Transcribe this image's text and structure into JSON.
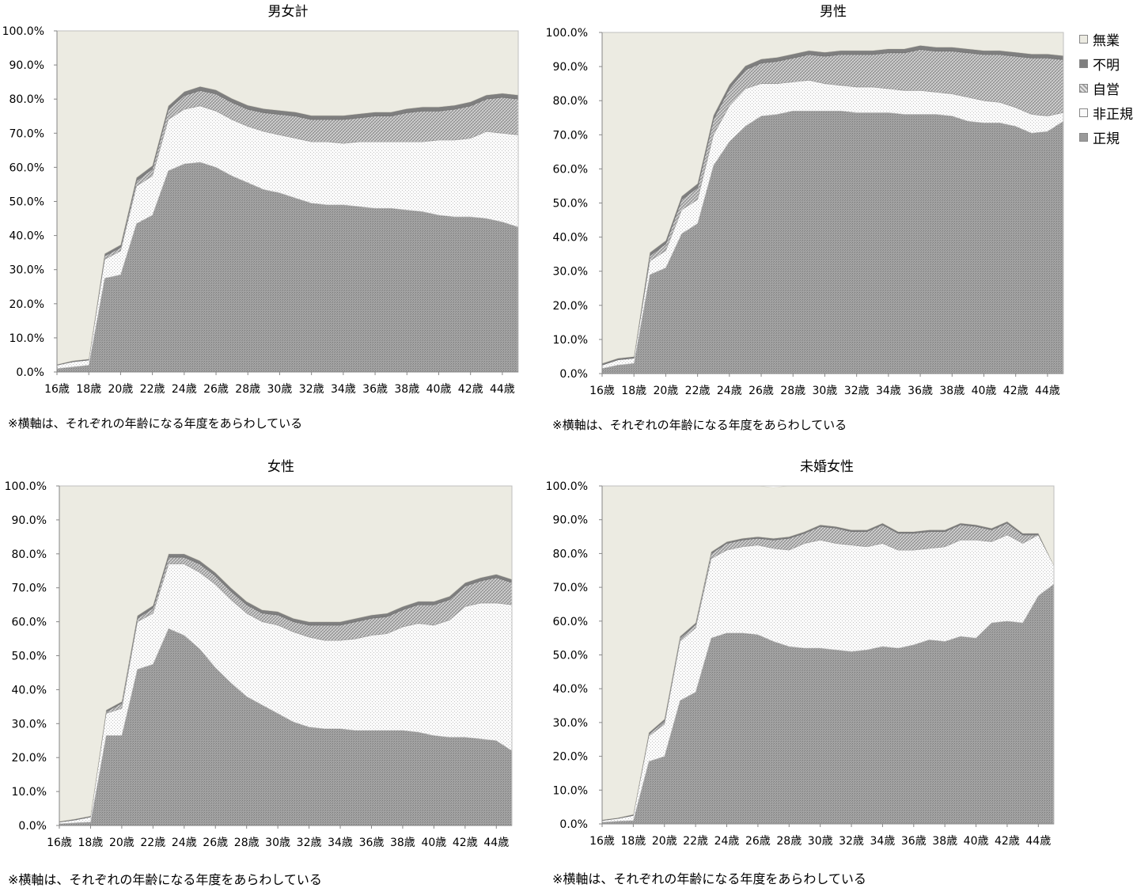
{
  "note": "※横軸は、それぞれの年齢になる年度をあらわしている",
  "legend": [
    {
      "key": "unemployed",
      "label": "無業"
    },
    {
      "key": "unknown",
      "label": "不明"
    },
    {
      "key": "self",
      "label": "自営"
    },
    {
      "key": "nonregular",
      "label": "非正規"
    },
    {
      "key": "regular",
      "label": "正規"
    }
  ],
  "colors": {
    "unemployed": "#ecebe2",
    "unknown": "#7f7f7f",
    "self": "#bfbfbf",
    "nonregular": "#f2f2f2",
    "regular": "#999999",
    "axis": "#868686",
    "border": "#bfbfbf"
  },
  "chart_data": [
    {
      "type": "area",
      "title": "男女計",
      "stacked": true,
      "x": [
        "16歳",
        "17歳",
        "18歳",
        "19歳",
        "20歳",
        "21歳",
        "22歳",
        "23歳",
        "24歳",
        "25歳",
        "26歳",
        "27歳",
        "28歳",
        "29歳",
        "30歳",
        "31歳",
        "32歳",
        "33歳",
        "34歳",
        "35歳",
        "36歳",
        "37歳",
        "38歳",
        "39歳",
        "40歳",
        "41歳",
        "42歳",
        "43歳",
        "44歳",
        "45歳"
      ],
      "tick_labels": [
        "16歳",
        "18歳",
        "20歳",
        "22歳",
        "24歳",
        "26歳",
        "28歳",
        "30歳",
        "32歳",
        "34歳",
        "36歳",
        "38歳",
        "40歳",
        "42歳",
        "44歳"
      ],
      "ylim": [
        0,
        100
      ],
      "yticks": [
        "0.0%",
        "10.0%",
        "20.0%",
        "30.0%",
        "40.0%",
        "50.0%",
        "60.0%",
        "70.0%",
        "80.0%",
        "90.0%",
        "100.0%"
      ],
      "series": [
        {
          "name": "正規",
          "values": [
            1,
            1.5,
            2,
            27.5,
            28.5,
            43.5,
            46,
            59,
            61,
            61.5,
            60,
            57.5,
            55.5,
            53.5,
            52.5,
            51,
            49.5,
            49,
            49,
            48.5,
            48,
            48,
            47.5,
            47,
            46,
            45.5,
            45.5,
            45,
            44,
            42.5
          ]
        },
        {
          "name": "非正規",
          "values": [
            1,
            1.5,
            1.5,
            5.5,
            7,
            11,
            11.5,
            15,
            16,
            16.5,
            16.5,
            16.5,
            16.5,
            17,
            17,
            17.5,
            18,
            18.5,
            18,
            19,
            19.5,
            19.5,
            20,
            20.5,
            22,
            22.5,
            23,
            25.5,
            26,
            27
          ]
        },
        {
          "name": "自営",
          "values": [
            0,
            0,
            0,
            1,
            1,
            1.5,
            2,
            3,
            4,
            4.5,
            5,
            5,
            5,
            5.5,
            6,
            6.5,
            6.5,
            6.5,
            7,
            7,
            7.5,
            7.5,
            8.5,
            9,
            8.5,
            9,
            9.5,
            9.5,
            10.5,
            10.5
          ]
        },
        {
          "name": "不明",
          "values": [
            0.2,
            0.3,
            0.3,
            0.7,
            0.8,
            1,
            1,
            1,
            1.2,
            1.2,
            1.2,
            1.2,
            1.2,
            1.2,
            1.2,
            1.2,
            1.2,
            1.2,
            1.2,
            1.2,
            1.2,
            1.2,
            1.2,
            1.2,
            1.2,
            1.2,
            1.2,
            1.2,
            1.2,
            1.2
          ]
        },
        {
          "name": "無業",
          "values": [
            97.8,
            96.7,
            96.2,
            65.3,
            62.7,
            43,
            39.5,
            22,
            17.8,
            16.3,
            17.3,
            20.3,
            21.8,
            22.8,
            23.3,
            23.8,
            24.8,
            24.8,
            24.8,
            24.3,
            23.8,
            23.8,
            22.8,
            22.3,
            22.3,
            21.8,
            20.8,
            18.8,
            18.3,
            18.8
          ]
        }
      ]
    },
    {
      "type": "area",
      "title": "男性",
      "stacked": true,
      "x": [
        "16歳",
        "17歳",
        "18歳",
        "19歳",
        "20歳",
        "21歳",
        "22歳",
        "23歳",
        "24歳",
        "25歳",
        "26歳",
        "27歳",
        "28歳",
        "29歳",
        "30歳",
        "31歳",
        "32歳",
        "33歳",
        "34歳",
        "35歳",
        "36歳",
        "37歳",
        "38歳",
        "39歳",
        "40歳",
        "41歳",
        "42歳",
        "43歳",
        "44歳",
        "45歳"
      ],
      "tick_labels": [
        "16歳",
        "18歳",
        "20歳",
        "22歳",
        "24歳",
        "26歳",
        "28歳",
        "30歳",
        "32歳",
        "34歳",
        "36歳",
        "38歳",
        "40歳",
        "42歳",
        "44歳"
      ],
      "ylim": [
        0,
        100
      ],
      "yticks": [
        "0.0%",
        "10.0%",
        "20.0%",
        "30.0%",
        "40.0%",
        "50.0%",
        "60.0%",
        "70.0%",
        "80.0%",
        "90.0%",
        "100.0%"
      ],
      "series": [
        {
          "name": "正規",
          "values": [
            1.5,
            2.5,
            3,
            29,
            31,
            41,
            44,
            61,
            68,
            72.5,
            75.5,
            76,
            77,
            77,
            77,
            77,
            76.5,
            76.5,
            76.5,
            76,
            76,
            76,
            75.5,
            74,
            73.5,
            73.5,
            72.5,
            70.5,
            71,
            74
          ]
        },
        {
          "name": "非正規",
          "values": [
            1,
            1.5,
            1.5,
            4,
            5,
            7,
            7,
            9,
            10.5,
            11,
            9.5,
            9,
            8.5,
            9,
            8,
            7.5,
            7.5,
            7.5,
            7,
            7,
            7,
            6.5,
            6.5,
            7,
            6.5,
            6,
            5.5,
            5.5,
            4.5,
            2.5
          ]
        },
        {
          "name": "自営",
          "values": [
            0,
            0,
            0,
            1.5,
            2,
            3,
            3.5,
            4.5,
            5,
            5.5,
            6,
            6.5,
            7,
            7.5,
            8,
            9,
            9.5,
            9.5,
            10.5,
            11,
            12,
            12,
            12.5,
            13,
            13.5,
            14,
            15,
            16.5,
            17,
            15.5
          ]
        },
        {
          "name": "不明",
          "values": [
            0.5,
            0.5,
            0.5,
            1,
            1,
            1,
            1.2,
            1.2,
            1.2,
            1.2,
            1.2,
            1.2,
            1.2,
            1.2,
            1.2,
            1.2,
            1.2,
            1.2,
            1.2,
            1.2,
            1.2,
            1.2,
            1.2,
            1.2,
            1.2,
            1.2,
            1.2,
            1.2,
            1.2,
            1.2
          ]
        },
        {
          "name": "無業",
          "values": [
            97,
            95.5,
            95,
            64.5,
            61,
            48,
            44.3,
            24.3,
            15.3,
            9.8,
            7.8,
            7.3,
            6.3,
            5.3,
            5.8,
            5.3,
            5.3,
            5.3,
            4.8,
            4.8,
            3.8,
            4.3,
            4.3,
            4.8,
            5.3,
            5.3,
            5.8,
            6.3,
            6.3,
            6.8
          ]
        }
      ]
    },
    {
      "type": "area",
      "title": "女性",
      "stacked": true,
      "x": [
        "16歳",
        "17歳",
        "18歳",
        "19歳",
        "20歳",
        "21歳",
        "22歳",
        "23歳",
        "24歳",
        "25歳",
        "26歳",
        "27歳",
        "28歳",
        "29歳",
        "30歳",
        "31歳",
        "32歳",
        "33歳",
        "34歳",
        "35歳",
        "36歳",
        "37歳",
        "38歳",
        "39歳",
        "40歳",
        "41歳",
        "42歳",
        "43歳",
        "44歳",
        "45歳"
      ],
      "tick_labels": [
        "16歳",
        "18歳",
        "20歳",
        "22歳",
        "24歳",
        "26歳",
        "28歳",
        "30歳",
        "32歳",
        "34歳",
        "36歳",
        "38歳",
        "40歳",
        "42歳",
        "44歳"
      ],
      "ylim": [
        0,
        100
      ],
      "yticks": [
        "0.0%",
        "10.0%",
        "20.0%",
        "30.0%",
        "40.0%",
        "50.0%",
        "60.0%",
        "70.0%",
        "80.0%",
        "90.0%",
        "100.0%"
      ],
      "series": [
        {
          "name": "正規",
          "values": [
            0.5,
            0.8,
            1,
            26.5,
            26.5,
            46,
            47.5,
            58,
            56,
            52,
            46.5,
            42,
            38,
            35.5,
            33,
            30.5,
            29,
            28.5,
            28.5,
            28,
            28,
            28,
            28,
            27.5,
            26.5,
            26,
            26,
            25.5,
            25,
            22
          ]
        },
        {
          "name": "非正規",
          "values": [
            0.5,
            0.8,
            1.5,
            6.5,
            8,
            14,
            15,
            19,
            21,
            22.5,
            24.5,
            24.5,
            24.5,
            24.5,
            26,
            26.5,
            26.5,
            26,
            26,
            27,
            28,
            28.5,
            30.5,
            32,
            32.5,
            34.5,
            38.5,
            40,
            40.5,
            43
          ]
        },
        {
          "name": "自営",
          "values": [
            0,
            0,
            0,
            0.5,
            1.5,
            1,
            1.5,
            2,
            2,
            2.5,
            2.5,
            2.5,
            2.5,
            2.5,
            3,
            3,
            3.5,
            4.5,
            4.5,
            5,
            5,
            5,
            5,
            5.5,
            6,
            6,
            6,
            6.5,
            7.5,
            6.5
          ]
        },
        {
          "name": "不明",
          "values": [
            0.2,
            0.3,
            0.3,
            0.5,
            0.5,
            0.8,
            0.8,
            1,
            1,
            1,
            1,
            1,
            1,
            1,
            1,
            1,
            1,
            1,
            1,
            1,
            1,
            1,
            1,
            1,
            1,
            1,
            1,
            1,
            1,
            1
          ]
        },
        {
          "name": "無業",
          "values": [
            98.8,
            98.1,
            97.2,
            66,
            63.5,
            38.2,
            35.2,
            20,
            20,
            22,
            25.5,
            30,
            34,
            36.5,
            37,
            39,
            40,
            40,
            40,
            39,
            38,
            37.5,
            35.5,
            34,
            34,
            32.5,
            28.5,
            27,
            26,
            27.5
          ]
        }
      ]
    },
    {
      "type": "area",
      "title": "未婚女性",
      "stacked": true,
      "x": [
        "16歳",
        "17歳",
        "18歳",
        "19歳",
        "20歳",
        "21歳",
        "22歳",
        "23歳",
        "24歳",
        "25歳",
        "26歳",
        "27歳",
        "28歳",
        "29歳",
        "30歳",
        "31歳",
        "32歳",
        "33歳",
        "34歳",
        "35歳",
        "36歳",
        "37歳",
        "38歳",
        "39歳",
        "40歳",
        "41歳",
        "42歳",
        "43歳",
        "44歳",
        "45歳"
      ],
      "tick_labels": [
        "16歳",
        "18歳",
        "20歳",
        "22歳",
        "24歳",
        "26歳",
        "28歳",
        "30歳",
        "32歳",
        "34歳",
        "36歳",
        "38歳",
        "40歳",
        "42歳",
        "44歳"
      ],
      "ylim": [
        0,
        100
      ],
      "yticks": [
        "0.0%",
        "10.0%",
        "20.0%",
        "30.0%",
        "40.0%",
        "50.0%",
        "60.0%",
        "70.0%",
        "80.0%",
        "90.0%",
        "100.0%"
      ],
      "series": [
        {
          "name": "正規",
          "values": [
            0.5,
            0.8,
            1,
            18.5,
            20,
            36.5,
            39,
            55,
            56.5,
            56.5,
            56,
            54,
            52.5,
            52,
            52,
            51.5,
            51,
            51.5,
            52.5,
            52,
            53,
            54.5,
            54,
            55.5,
            55,
            59.5,
            60,
            59.5,
            67.5,
            71
          ]
        },
        {
          "name": "非正規",
          "values": [
            0.5,
            0.8,
            1.5,
            7.5,
            9.5,
            17.5,
            19,
            23.5,
            24.5,
            25.5,
            26.5,
            27.5,
            28.5,
            31,
            32,
            31.5,
            31.5,
            30.5,
            30.5,
            29,
            28,
            27,
            28,
            28.5,
            29,
            24,
            25.5,
            23.5,
            18,
            5.5
          ]
        },
        {
          "name": "自営",
          "values": [
            0,
            0,
            0,
            0.5,
            1,
            1,
            1,
            1.5,
            2,
            2,
            2,
            2.5,
            3.5,
            3,
            4,
            4.5,
            4,
            4.5,
            5.5,
            5,
            5,
            5,
            4.5,
            4.5,
            4,
            3.5,
            3.5,
            2.5,
            0,
            0
          ]
        },
        {
          "name": "不明",
          "values": [
            0.2,
            0.2,
            0.3,
            0.5,
            0.5,
            0.5,
            0.5,
            0.5,
            0.5,
            0.5,
            0.5,
            0.5,
            0.5,
            0.5,
            0.5,
            0.5,
            0.5,
            0.5,
            0.5,
            0.5,
            0.5,
            0.5,
            0.5,
            0.5,
            0.5,
            0.5,
            0.5,
            0.5,
            0.5,
            0
          ]
        },
        {
          "name": "無業",
          "values": [
            98.8,
            98.2,
            97.2,
            73,
            69,
            44.5,
            40.5,
            19.5,
            16.5,
            15.5,
            15,
            15,
            15,
            13.5,
            11.5,
            12,
            13,
            13,
            11,
            13.5,
            13.5,
            13,
            13,
            11,
            11.5,
            12.5,
            10.5,
            14,
            14,
            23.5
          ]
        }
      ]
    }
  ]
}
